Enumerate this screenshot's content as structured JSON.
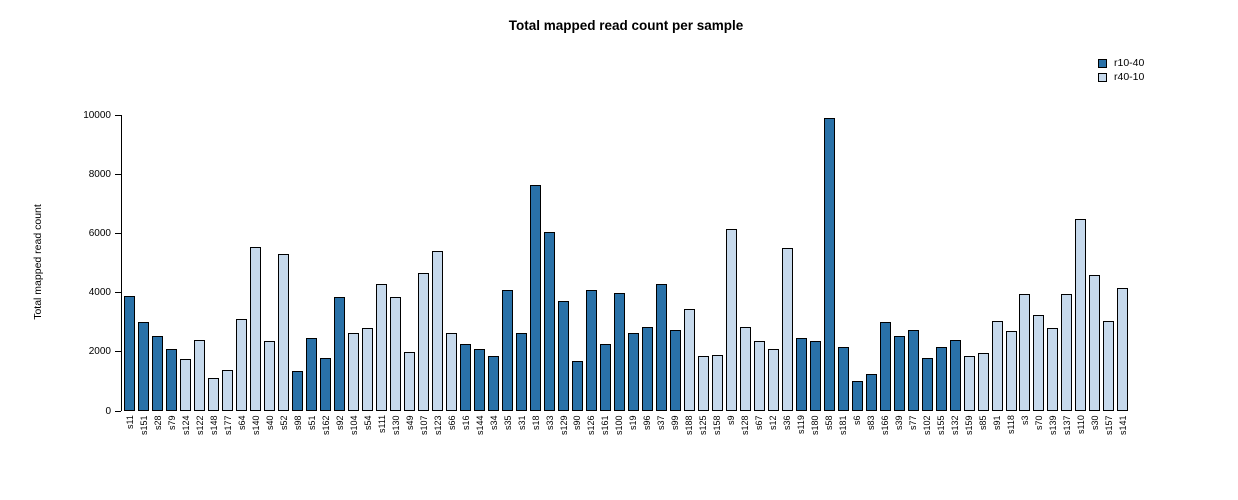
{
  "legend": [
    {
      "label": "r10-40",
      "color": "#2971A8"
    },
    {
      "label": "r40-10",
      "color": "#C6D9EC"
    }
  ],
  "chart_data": {
    "type": "bar",
    "title": "Total mapped read count per sample",
    "xlabel": "",
    "ylabel": "Total mapped read count",
    "ylim": [
      0,
      10000
    ],
    "yticks": [
      0,
      2000,
      4000,
      6000,
      8000,
      10000
    ],
    "grid": false,
    "legend_position": "top-right",
    "series_colors": {
      "r10-40": "#2971A8",
      "r40-10": "#C6D9EC"
    },
    "bars": [
      {
        "sample": "s11",
        "value": 3900,
        "group": "r10-40"
      },
      {
        "sample": "s151",
        "value": 3000,
        "group": "r10-40"
      },
      {
        "sample": "s28",
        "value": 2550,
        "group": "r10-40"
      },
      {
        "sample": "s79",
        "value": 2100,
        "group": "r10-40"
      },
      {
        "sample": "s124",
        "value": 1750,
        "group": "r40-10"
      },
      {
        "sample": "s122",
        "value": 2400,
        "group": "r40-10"
      },
      {
        "sample": "s148",
        "value": 1100,
        "group": "r40-10"
      },
      {
        "sample": "s177",
        "value": 1400,
        "group": "r40-10"
      },
      {
        "sample": "s64",
        "value": 3100,
        "group": "r40-10"
      },
      {
        "sample": "s140",
        "value": 5550,
        "group": "r40-10"
      },
      {
        "sample": "s40",
        "value": 2350,
        "group": "r40-10"
      },
      {
        "sample": "s52",
        "value": 5300,
        "group": "r40-10"
      },
      {
        "sample": "s98",
        "value": 1350,
        "group": "r10-40"
      },
      {
        "sample": "s51",
        "value": 2450,
        "group": "r10-40"
      },
      {
        "sample": "s162",
        "value": 1800,
        "group": "r10-40"
      },
      {
        "sample": "s92",
        "value": 3850,
        "group": "r10-40"
      },
      {
        "sample": "s104",
        "value": 2650,
        "group": "r40-10"
      },
      {
        "sample": "s54",
        "value": 2800,
        "group": "r40-10"
      },
      {
        "sample": "s111",
        "value": 4300,
        "group": "r40-10"
      },
      {
        "sample": "s130",
        "value": 3850,
        "group": "r40-10"
      },
      {
        "sample": "s49",
        "value": 2000,
        "group": "r40-10"
      },
      {
        "sample": "s107",
        "value": 4650,
        "group": "r40-10"
      },
      {
        "sample": "s123",
        "value": 5400,
        "group": "r40-10"
      },
      {
        "sample": "s66",
        "value": 2650,
        "group": "r40-10"
      },
      {
        "sample": "s16",
        "value": 2250,
        "group": "r10-40"
      },
      {
        "sample": "s144",
        "value": 2100,
        "group": "r10-40"
      },
      {
        "sample": "s34",
        "value": 1850,
        "group": "r10-40"
      },
      {
        "sample": "s35",
        "value": 4100,
        "group": "r10-40"
      },
      {
        "sample": "s31",
        "value": 2650,
        "group": "r10-40"
      },
      {
        "sample": "s18",
        "value": 7650,
        "group": "r10-40"
      },
      {
        "sample": "s33",
        "value": 6050,
        "group": "r10-40"
      },
      {
        "sample": "s129",
        "value": 3700,
        "group": "r10-40"
      },
      {
        "sample": "s90",
        "value": 1700,
        "group": "r10-40"
      },
      {
        "sample": "s126",
        "value": 4100,
        "group": "r10-40"
      },
      {
        "sample": "s161",
        "value": 2250,
        "group": "r10-40"
      },
      {
        "sample": "s100",
        "value": 4000,
        "group": "r10-40"
      },
      {
        "sample": "s19",
        "value": 2650,
        "group": "r10-40"
      },
      {
        "sample": "s96",
        "value": 2850,
        "group": "r10-40"
      },
      {
        "sample": "s37",
        "value": 4300,
        "group": "r10-40"
      },
      {
        "sample": "s99",
        "value": 2750,
        "group": "r10-40"
      },
      {
        "sample": "s188",
        "value": 3450,
        "group": "r40-10"
      },
      {
        "sample": "s125",
        "value": 1850,
        "group": "r40-10"
      },
      {
        "sample": "s158",
        "value": 1900,
        "group": "r40-10"
      },
      {
        "sample": "s9",
        "value": 6150,
        "group": "r40-10"
      },
      {
        "sample": "s128",
        "value": 2850,
        "group": "r40-10"
      },
      {
        "sample": "s67",
        "value": 2350,
        "group": "r40-10"
      },
      {
        "sample": "s12",
        "value": 2100,
        "group": "r40-10"
      },
      {
        "sample": "s36",
        "value": 5500,
        "group": "r40-10"
      },
      {
        "sample": "s119",
        "value": 2450,
        "group": "r10-40"
      },
      {
        "sample": "s180",
        "value": 2350,
        "group": "r10-40"
      },
      {
        "sample": "s58",
        "value": 9900,
        "group": "r10-40"
      },
      {
        "sample": "s181",
        "value": 2150,
        "group": "r10-40"
      },
      {
        "sample": "s6",
        "value": 1000,
        "group": "r10-40"
      },
      {
        "sample": "s83",
        "value": 1250,
        "group": "r10-40"
      },
      {
        "sample": "s166",
        "value": 3000,
        "group": "r10-40"
      },
      {
        "sample": "s39",
        "value": 2550,
        "group": "r10-40"
      },
      {
        "sample": "s77",
        "value": 2750,
        "group": "r10-40"
      },
      {
        "sample": "s102",
        "value": 1800,
        "group": "r10-40"
      },
      {
        "sample": "s155",
        "value": 2150,
        "group": "r10-40"
      },
      {
        "sample": "s132",
        "value": 2400,
        "group": "r10-40"
      },
      {
        "sample": "s159",
        "value": 1850,
        "group": "r40-10"
      },
      {
        "sample": "s85",
        "value": 1950,
        "group": "r40-10"
      },
      {
        "sample": "s91",
        "value": 3050,
        "group": "r40-10"
      },
      {
        "sample": "s118",
        "value": 2700,
        "group": "r40-10"
      },
      {
        "sample": "s3",
        "value": 3950,
        "group": "r40-10"
      },
      {
        "sample": "s70",
        "value": 3250,
        "group": "r40-10"
      },
      {
        "sample": "s139",
        "value": 2800,
        "group": "r40-10"
      },
      {
        "sample": "s137",
        "value": 3950,
        "group": "r40-10"
      },
      {
        "sample": "s110",
        "value": 6500,
        "group": "r40-10"
      },
      {
        "sample": "s30",
        "value": 4600,
        "group": "r40-10"
      },
      {
        "sample": "s157",
        "value": 3050,
        "group": "r40-10"
      },
      {
        "sample": "s141",
        "value": 4150,
        "group": "r40-10"
      }
    ]
  }
}
